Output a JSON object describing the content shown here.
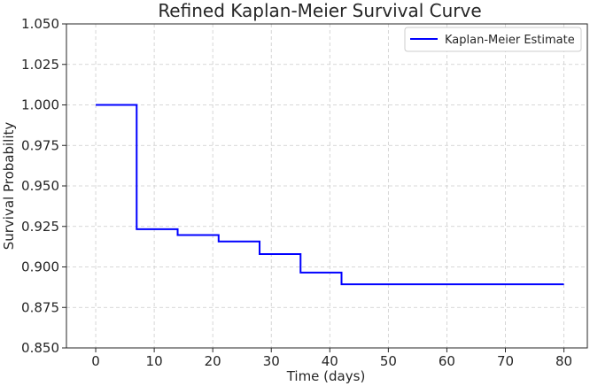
{
  "chart_data": {
    "type": "line",
    "title": "Refined Kaplan-Meier Survival Curve",
    "xlabel": "Time (days)",
    "ylabel": "Survival Probability",
    "xlim": [
      -5,
      84
    ],
    "ylim": [
      0.85,
      1.05
    ],
    "xticks": [
      0,
      10,
      20,
      30,
      40,
      50,
      60,
      70,
      80
    ],
    "yticks": [
      0.85,
      0.875,
      0.9,
      0.925,
      0.95,
      0.975,
      1.0,
      1.025,
      1.05
    ],
    "xtick_labels": [
      "0",
      "10",
      "20",
      "30",
      "40",
      "50",
      "60",
      "70",
      "80"
    ],
    "ytick_labels": [
      "0.850",
      "0.875",
      "0.900",
      "0.925",
      "0.950",
      "0.975",
      "1.000",
      "1.025",
      "1.050"
    ],
    "grid": true,
    "legend_position": "top-right",
    "step": "post",
    "series": [
      {
        "name": "Kaplan-Meier Estimate",
        "color": "#0000ff",
        "x": [
          0,
          7,
          14,
          21,
          28,
          35,
          42,
          80
        ],
        "y": [
          1.0,
          0.9233,
          0.9197,
          0.9157,
          0.9079,
          0.8965,
          0.8893,
          0.8893
        ]
      }
    ]
  }
}
